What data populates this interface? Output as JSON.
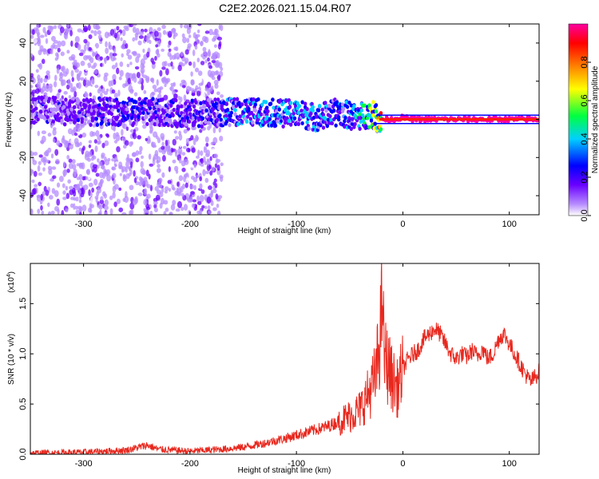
{
  "page_title": "C2E2.2026.021.15.04.R07",
  "chart_data": [
    {
      "id": "spectrogram",
      "type": "heatmap",
      "title": "C2E2.2026.021.15.04.R07",
      "xlabel": "Height of straight line (km)",
      "ylabel": "Frequency (Hz)",
      "xlim": [
        -350,
        128
      ],
      "ylim": [
        -50,
        50
      ],
      "xticks": [
        -300,
        -200,
        -100,
        0,
        100
      ],
      "xtick_labels": [
        "-300",
        "-200",
        "-100",
        "0",
        "100"
      ],
      "yticks": [
        -40,
        -20,
        0,
        20,
        40
      ],
      "ytick_labels": [
        "-40",
        "-20",
        "0",
        "20",
        "40"
      ],
      "colorbar": {
        "label": "Normalized spectral amplitude",
        "range": [
          0,
          1
        ],
        "ticks": [
          0.0,
          0.2,
          0.4,
          0.6,
          0.8
        ],
        "tick_labels": [
          "0.0",
          "0.2",
          "0.4",
          "0.6",
          "0.8"
        ],
        "colors": [
          "#ffffff",
          "#b68cff",
          "#6a00ff",
          "#0000ff",
          "#00d0ff",
          "#00ff40",
          "#ffff00",
          "#ff8000",
          "#ff0000",
          "#ff00a0"
        ]
      },
      "trace": {
        "x": [
          -350,
          -300,
          -250,
          -200,
          -150,
          -100,
          -80,
          -60,
          -45,
          -30,
          -22,
          -10,
          0,
          10,
          50,
          100,
          128
        ],
        "freq_hz": [
          5,
          4,
          4,
          3,
          4,
          3,
          1,
          4,
          1,
          3,
          0,
          0,
          1,
          0,
          0,
          0,
          0
        ],
        "peak_amplitude": [
          0.3,
          0.3,
          0.35,
          0.3,
          0.45,
          0.5,
          0.45,
          0.4,
          0.5,
          0.7,
          1.0,
          1.0,
          1.0,
          1.0,
          1.0,
          1.0,
          1.0
        ]
      }
    },
    {
      "id": "snr",
      "type": "line",
      "xlabel": "Height of straight line (km)",
      "ylabel": "SNR (10 * v/v)",
      "scale_note": "(x10",
      "scale_exp": "4",
      "scale_close": ")",
      "xlim": [
        -350,
        128
      ],
      "ylim": [
        0,
        1.9
      ],
      "xticks": [
        -300,
        -200,
        -100,
        0,
        100
      ],
      "xtick_labels": [
        "-300",
        "-200",
        "-100",
        "0",
        "100"
      ],
      "yticks": [
        0.0,
        0.5,
        1.0,
        1.5
      ],
      "ytick_labels": [
        "0.0",
        "0.5",
        "1.0",
        "1.5"
      ],
      "series": [
        {
          "name": "SNR",
          "color": "#e8281e",
          "x": [
            -350,
            -300,
            -260,
            -240,
            -230,
            -200,
            -170,
            -150,
            -130,
            -110,
            -90,
            -70,
            -50,
            -40,
            -30,
            -25,
            -20,
            -19,
            -18,
            -10,
            -5,
            0,
            5,
            10,
            15,
            20,
            25,
            30,
            35,
            40,
            45,
            50,
            55,
            60,
            65,
            70,
            75,
            80,
            85,
            90,
            95,
            100,
            105,
            110,
            115,
            120,
            128
          ],
          "y": [
            0.01,
            0.02,
            0.04,
            0.09,
            0.05,
            0.03,
            0.05,
            0.07,
            0.11,
            0.16,
            0.22,
            0.28,
            0.38,
            0.45,
            0.65,
            0.8,
            1.35,
            1.85,
            1.0,
            0.75,
            0.65,
            0.85,
            0.95,
            1.0,
            1.05,
            1.15,
            1.2,
            1.25,
            1.2,
            1.1,
            1.0,
            0.95,
            1.0,
            0.97,
            1.03,
            0.98,
            1.05,
            0.95,
            1.0,
            1.15,
            1.2,
            1.1,
            1.0,
            0.9,
            0.8,
            0.72,
            0.82
          ]
        }
      ]
    }
  ]
}
